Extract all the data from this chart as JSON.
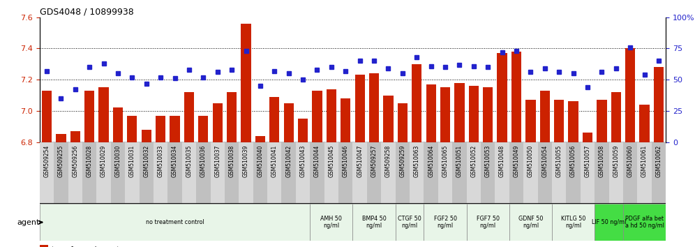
{
  "title": "GDS4048 / 10899938",
  "samples": [
    "GSM509254",
    "GSM509255",
    "GSM509256",
    "GSM510028",
    "GSM510029",
    "GSM510030",
    "GSM510031",
    "GSM510032",
    "GSM510033",
    "GSM510034",
    "GSM510035",
    "GSM510036",
    "GSM510037",
    "GSM510038",
    "GSM510039",
    "GSM510040",
    "GSM510041",
    "GSM510042",
    "GSM510043",
    "GSM510044",
    "GSM510045",
    "GSM510046",
    "GSM510047",
    "GSM509257",
    "GSM509258",
    "GSM509259",
    "GSM510063",
    "GSM510064",
    "GSM510065",
    "GSM510051",
    "GSM510052",
    "GSM510053",
    "GSM510048",
    "GSM510049",
    "GSM510050",
    "GSM510054",
    "GSM510055",
    "GSM510056",
    "GSM510057",
    "GSM510058",
    "GSM510059",
    "GSM510060",
    "GSM510061",
    "GSM510062"
  ],
  "bar_values": [
    7.13,
    6.85,
    6.87,
    7.13,
    7.15,
    7.02,
    6.97,
    6.88,
    6.97,
    6.97,
    7.12,
    6.97,
    7.05,
    7.12,
    7.56,
    6.84,
    7.09,
    7.05,
    6.95,
    7.13,
    7.14,
    7.08,
    7.23,
    7.24,
    7.1,
    7.05,
    7.3,
    7.17,
    7.15,
    7.18,
    7.16,
    7.15,
    7.37,
    7.38,
    7.07,
    7.13,
    7.07,
    7.06,
    6.86,
    7.07,
    7.12,
    7.4,
    7.04,
    7.28
  ],
  "percentile_values": [
    57,
    35,
    42,
    60,
    63,
    55,
    52,
    47,
    52,
    51,
    58,
    52,
    56,
    58,
    73,
    45,
    57,
    55,
    50,
    58,
    60,
    57,
    65,
    65,
    59,
    55,
    68,
    61,
    60,
    62,
    61,
    60,
    72,
    73,
    56,
    59,
    56,
    55,
    44,
    56,
    59,
    76,
    54,
    65
  ],
  "ylim_left": [
    6.8,
    7.6
  ],
  "ylim_right": [
    0,
    100
  ],
  "bar_color": "#cc2200",
  "dot_color": "#2222cc",
  "bar_bottom": 6.8,
  "yticks_left": [
    6.8,
    7.0,
    7.2,
    7.4,
    7.6
  ],
  "yticks_right": [
    0,
    25,
    50,
    75,
    100
  ],
  "hlines": [
    7.0,
    7.2,
    7.4
  ],
  "groups": [
    {
      "label": "no treatment control",
      "start": 0,
      "end": 19,
      "color": "#e8f5e8"
    },
    {
      "label": "AMH 50\nng/ml",
      "start": 19,
      "end": 22,
      "color": "#e8f5e8"
    },
    {
      "label": "BMP4 50\nng/ml",
      "start": 22,
      "end": 25,
      "color": "#e8f5e8"
    },
    {
      "label": "CTGF 50\nng/ml",
      "start": 25,
      "end": 27,
      "color": "#e8f5e8"
    },
    {
      "label": "FGF2 50\nng/ml",
      "start": 27,
      "end": 30,
      "color": "#e8f5e8"
    },
    {
      "label": "FGF7 50\nng/ml",
      "start": 30,
      "end": 33,
      "color": "#e8f5e8"
    },
    {
      "label": "GDNF 50\nng/ml",
      "start": 33,
      "end": 36,
      "color": "#e8f5e8"
    },
    {
      "label": "KITLG 50\nng/ml",
      "start": 36,
      "end": 39,
      "color": "#e8f5e8"
    },
    {
      "label": "LIF 50 ng/ml",
      "start": 39,
      "end": 41,
      "color": "#44dd44"
    },
    {
      "label": "PDGF alfa bet\na hd 50 ng/ml",
      "start": 41,
      "end": 44,
      "color": "#44dd44"
    }
  ],
  "tick_label_colors": [
    "#cccccc",
    "#aaaaaa"
  ],
  "left_axis_color": "#cc2200",
  "right_axis_color": "#2222cc",
  "figure_width": 9.96,
  "figure_height": 3.54,
  "dpi": 100
}
